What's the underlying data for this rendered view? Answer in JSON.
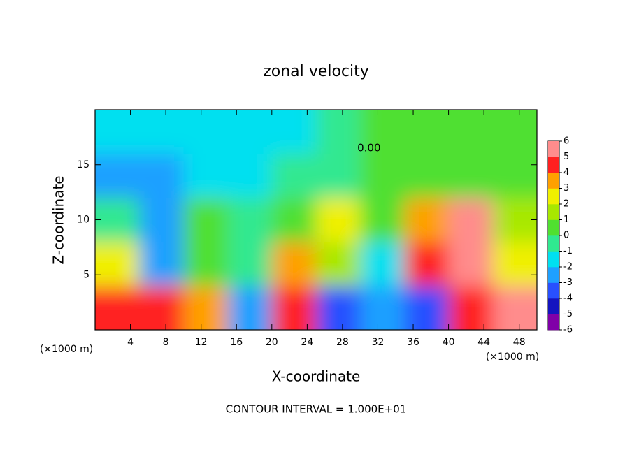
{
  "chart_data": {
    "type": "heatmap",
    "title": "zonal velocity",
    "x_label": "X-coordinate",
    "y_label": "Z-coordinate",
    "x_unit": "(×1000 m)",
    "annotation": "CONTOUR INTERVAL = 1.000E+01",
    "contour_label": "0.00",
    "xlim": [
      0,
      50
    ],
    "ylim": [
      0,
      20
    ],
    "xticks": [
      4,
      8,
      12,
      16,
      20,
      24,
      28,
      32,
      36,
      40,
      44,
      48
    ],
    "yticks": [
      5,
      10,
      15
    ],
    "x": [
      2.5,
      7.5,
      12.5,
      17.5,
      22.5,
      27.5,
      32.5,
      37.5,
      42.5,
      47.5
    ],
    "y": [
      2,
      6,
      10,
      14,
      18
    ],
    "z": [
      [
        4,
        4,
        3,
        -3,
        4,
        -4,
        -3,
        -4,
        4,
        5
      ],
      [
        2,
        -3,
        0,
        -1,
        3,
        1,
        -2,
        4,
        5,
        2
      ],
      [
        -1,
        -3,
        0,
        -1,
        0,
        2,
        0.5,
        3,
        5.5,
        1
      ],
      [
        -3,
        -2.5,
        -2,
        -1.5,
        -1,
        -0.5,
        0,
        0,
        0.5,
        0.5
      ],
      [
        -2,
        -2,
        -2,
        -2,
        -1.5,
        -0.5,
        0,
        0,
        0,
        0.5
      ]
    ],
    "clim": [
      -6,
      6
    ],
    "colorbar_ticks": [
      -6,
      -5,
      -4,
      -3,
      -2,
      -1,
      0,
      1,
      2,
      3,
      4,
      5,
      6
    ],
    "colors": [
      "#8000a8",
      "#1414c0",
      "#2850ff",
      "#1ea0ff",
      "#00e0f0",
      "#30e890",
      "#50e030",
      "#a8e800",
      "#f0f000",
      "#ffa000",
      "#ff2020",
      "#ff8c8c"
    ]
  }
}
